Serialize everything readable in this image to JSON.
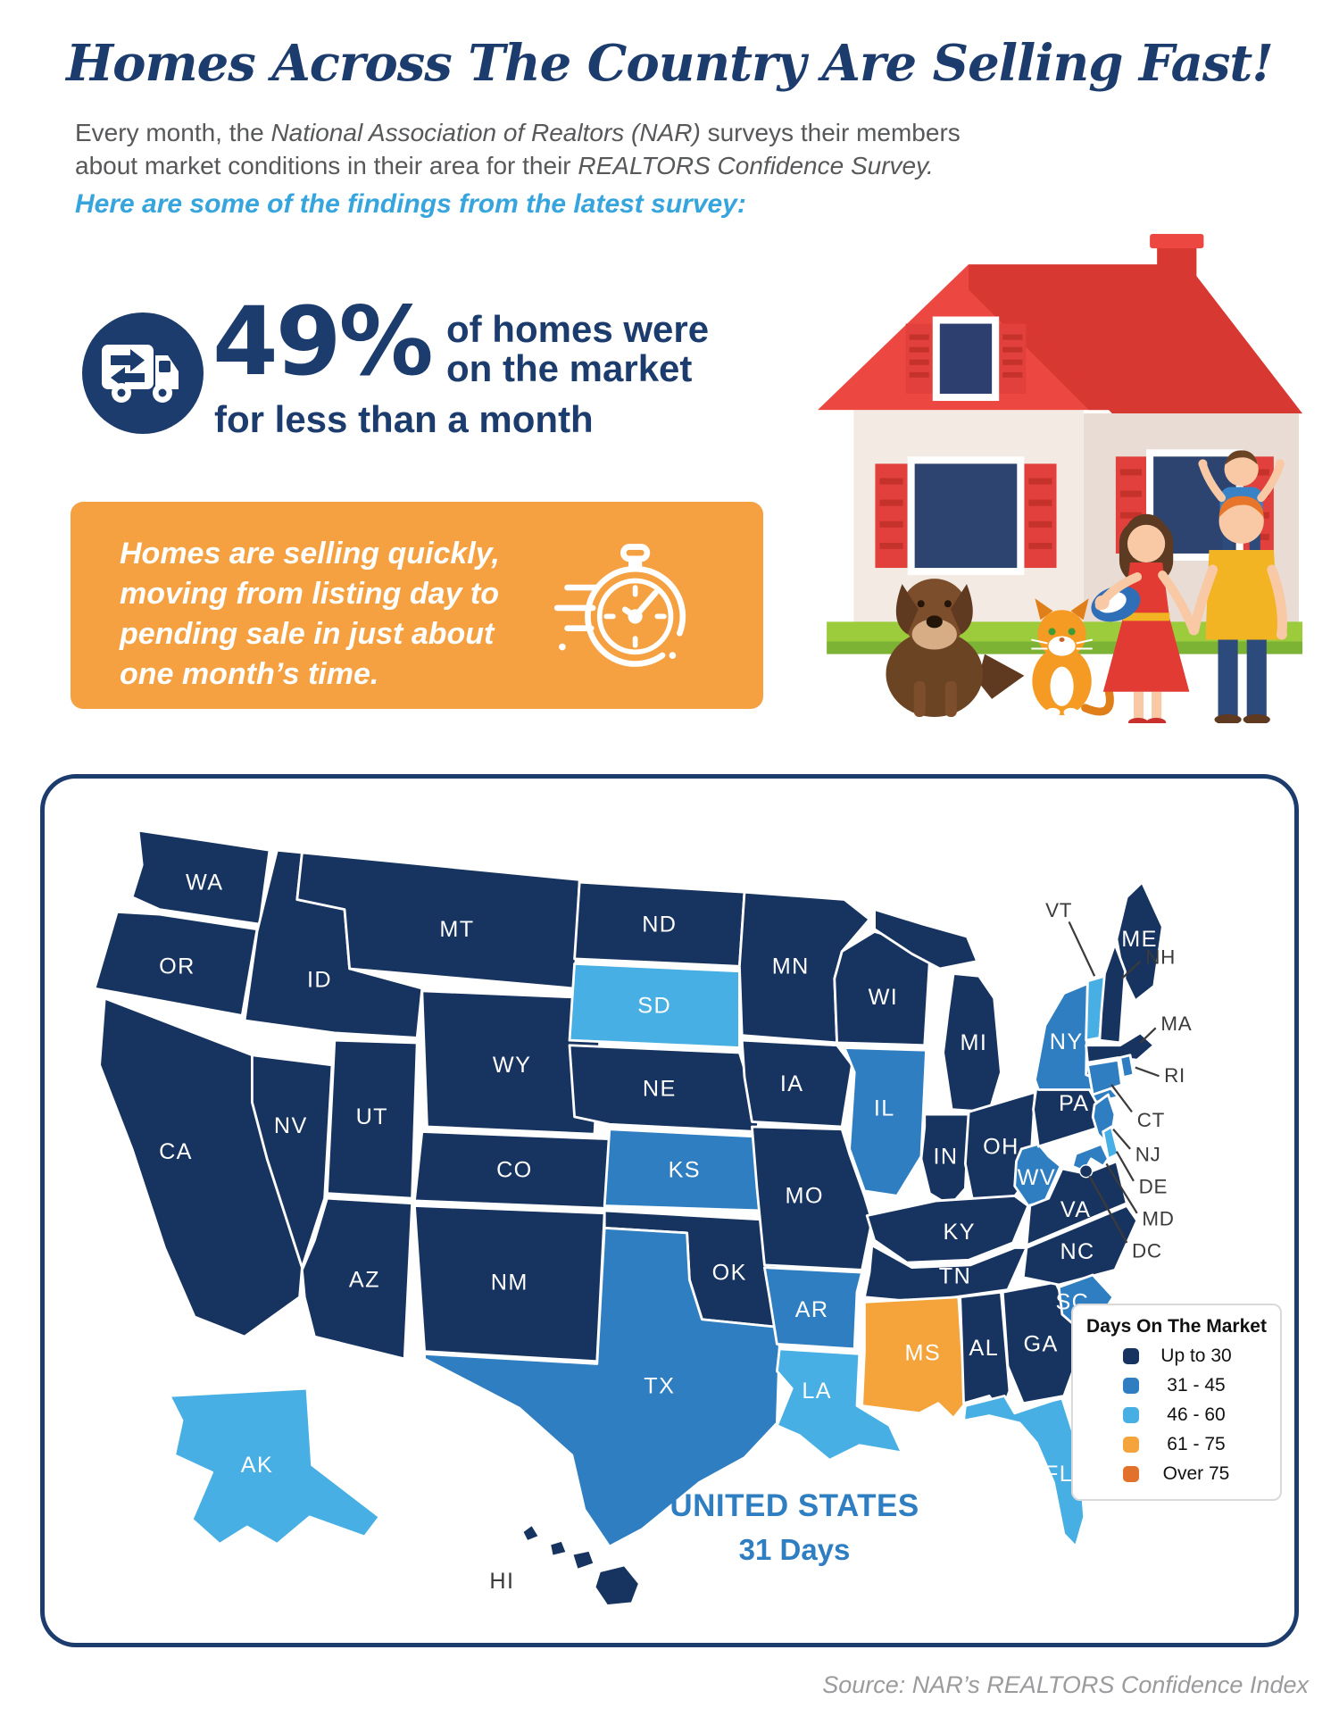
{
  "header": {
    "title": "Homes Across The Country Are Selling Fast!",
    "intro": {
      "l1_pre": "Every month, the ",
      "l1_it": "National Association of Realtors (NAR)",
      "l1_post": " surveys their members",
      "l2_pre": "about market conditions in their area for their ",
      "l2_it": "REALTORS Confidence Survey."
    },
    "findings": "Here are some of the findings from the latest survey:"
  },
  "stat": {
    "value": "49%",
    "line1": "of homes were",
    "line2": "on the market",
    "line3": "for less than a month",
    "accent_color": "#1D3C6E"
  },
  "callout": {
    "lines": [
      "Homes are selling quickly,",
      "moving from listing day to",
      "pending sale in just about",
      "one month’s time."
    ],
    "bg_color": "#F5A142"
  },
  "map": {
    "legend": {
      "title": "Days On The Market",
      "items": [
        {
          "label": "Up to 30",
          "color": "#17335F"
        },
        {
          "label": "31 - 45",
          "color": "#2E7EC1"
        },
        {
          "label": "46 - 60",
          "color": "#47AFE4"
        },
        {
          "label": "61 - 75",
          "color": "#F4A43B"
        },
        {
          "label": "Over 75",
          "color": "#E2712B"
        }
      ]
    },
    "us_label": "UNITED STATES",
    "us_days": "31 Days"
  },
  "source": {
    "text": "Source: NAR’s REALTORS Confidence Index"
  },
  "chart_data": {
    "type": "heatmap",
    "subtype": "choropleth-us-states",
    "title": "Days On The Market",
    "legend": [
      {
        "label": "Up to 30",
        "color": "#17335F"
      },
      {
        "label": "31 - 45",
        "color": "#2E7EC1"
      },
      {
        "label": "46 - 60",
        "color": "#47AFE4"
      },
      {
        "label": "61 - 75",
        "color": "#F4A43B"
      },
      {
        "label": "Over 75",
        "color": "#E2712B"
      }
    ],
    "us_overall": "31 Days",
    "headline_stat": "49% of homes were on the market for less than a month",
    "states": {
      "WA": "Up to 30",
      "OR": "Up to 30",
      "CA": "Up to 30",
      "NV": "Up to 30",
      "ID": "Up to 30",
      "MT": "Up to 30",
      "WY": "Up to 30",
      "UT": "Up to 30",
      "CO": "Up to 30",
      "AZ": "Up to 30",
      "NM": "Up to 30",
      "ND": "Up to 30",
      "NE": "Up to 30",
      "OK": "Up to 30",
      "MN": "Up to 30",
      "IA": "Up to 30",
      "MO": "Up to 30",
      "WI": "Up to 30",
      "MI": "Up to 30",
      "IN": "Up to 30",
      "OH": "Up to 30",
      "KY": "Up to 30",
      "TN": "Up to 30",
      "AL": "Up to 30",
      "GA": "Up to 30",
      "PA": "Up to 30",
      "VA": "Up to 30",
      "NC": "Up to 30",
      "NH": "Up to 30",
      "MA": "Up to 30",
      "ME": "Up to 30",
      "HI": "Up to 30",
      "DC": "Up to 30",
      "KS": "31 - 45",
      "TX": "31 - 45",
      "AR": "31 - 45",
      "IL": "31 - 45",
      "WV": "31 - 45",
      "SC": "31 - 45",
      "NY": "31 - 45",
      "NJ": "31 - 45",
      "CT": "31 - 45",
      "RI": "31 - 45",
      "MD": "31 - 45",
      "SD": "46 - 60",
      "AK": "46 - 60",
      "LA": "46 - 60",
      "FL": "46 - 60",
      "VT": "46 - 60",
      "DE": "46 - 60",
      "MS": "61 - 75"
    }
  }
}
